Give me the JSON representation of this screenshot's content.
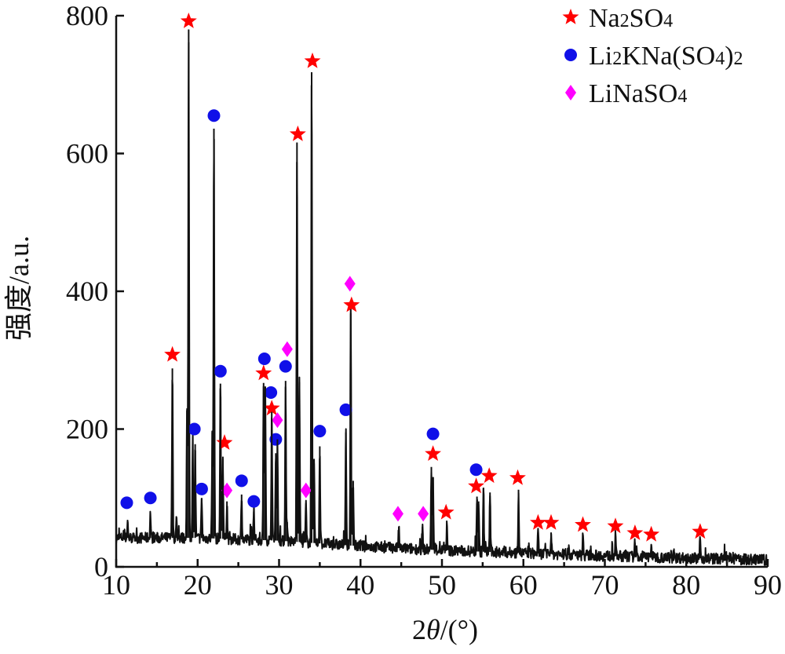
{
  "chart_data": {
    "type": "line",
    "xlabel_prefix": "2",
    "xlabel_var": "θ",
    "xlabel_unit": "/(°)",
    "ylabel": "强度/a.u.",
    "xlim": [
      10,
      90
    ],
    "ylim": [
      0,
      800
    ],
    "xticks": [
      10,
      20,
      30,
      40,
      50,
      60,
      70,
      80,
      90
    ],
    "yticks": [
      0,
      200,
      400,
      600,
      800
    ],
    "grid": false,
    "legend_position": "top-right",
    "legend": [
      {
        "key": "na2so4",
        "base": [
          "Na",
          "2",
          "SO",
          "4",
          ""
        ],
        "marker": "star",
        "color": "#ff0000"
      },
      {
        "key": "likna",
        "base": [
          "Li",
          "2",
          "KNa(SO",
          "4",
          ")2"
        ],
        "marker": "circle",
        "color": "#1010e8"
      },
      {
        "key": "linaso4",
        "base": [
          "LiNaSO",
          "4",
          "",
          "",
          ""
        ],
        "marker": "diamond",
        "color": "#ff00ff"
      }
    ],
    "legend_labels": {
      "na2so4": "Na2SO4",
      "likna": "Li2KNa(SO4)2",
      "linaso4": "LiNaSO4"
    },
    "series": [
      {
        "style": "xrd-pattern",
        "peaks": [
          {
            "x": 11.4,
            "y": 68
          },
          {
            "x": 14.2,
            "y": 78
          },
          {
            "x": 16.9,
            "y": 288
          },
          {
            "x": 17.4,
            "y": 70
          },
          {
            "x": 18.7,
            "y": 230
          },
          {
            "x": 18.9,
            "y": 780
          },
          {
            "x": 19.4,
            "y": 188
          },
          {
            "x": 19.7,
            "y": 178
          },
          {
            "x": 20.5,
            "y": 100
          },
          {
            "x": 21.8,
            "y": 195
          },
          {
            "x": 22.0,
            "y": 636
          },
          {
            "x": 22.8,
            "y": 266
          },
          {
            "x": 23.1,
            "y": 160
          },
          {
            "x": 23.6,
            "y": 95
          },
          {
            "x": 25.4,
            "y": 105
          },
          {
            "x": 26.9,
            "y": 80
          },
          {
            "x": 28.1,
            "y": 267
          },
          {
            "x": 28.3,
            "y": 262
          },
          {
            "x": 29.1,
            "y": 225
          },
          {
            "x": 29.6,
            "y": 165
          },
          {
            "x": 29.8,
            "y": 185
          },
          {
            "x": 30.8,
            "y": 270
          },
          {
            "x": 31.0,
            "y": 65
          },
          {
            "x": 32.2,
            "y": 616
          },
          {
            "x": 32.5,
            "y": 268
          },
          {
            "x": 33.3,
            "y": 92
          },
          {
            "x": 34.0,
            "y": 718
          },
          {
            "x": 34.3,
            "y": 150
          },
          {
            "x": 35.0,
            "y": 175
          },
          {
            "x": 38.2,
            "y": 195
          },
          {
            "x": 38.8,
            "y": 368
          },
          {
            "x": 39.1,
            "y": 125
          },
          {
            "x": 44.7,
            "y": 58
          },
          {
            "x": 47.6,
            "y": 58
          },
          {
            "x": 48.7,
            "y": 145
          },
          {
            "x": 48.9,
            "y": 130
          },
          {
            "x": 50.6,
            "y": 60
          },
          {
            "x": 54.3,
            "y": 102
          },
          {
            "x": 54.5,
            "y": 95
          },
          {
            "x": 55.1,
            "y": 115
          },
          {
            "x": 55.9,
            "y": 108
          },
          {
            "x": 59.4,
            "y": 112
          },
          {
            "x": 61.8,
            "y": 50
          },
          {
            "x": 63.4,
            "y": 50
          },
          {
            "x": 67.3,
            "y": 48
          },
          {
            "x": 71.3,
            "y": 45
          },
          {
            "x": 73.7,
            "y": 35
          },
          {
            "x": 75.7,
            "y": 32
          },
          {
            "x": 81.7,
            "y": 38
          }
        ]
      }
    ],
    "markers": [
      {
        "type": "star",
        "x": 16.9,
        "y": 308
      },
      {
        "type": "star",
        "x": 18.9,
        "y": 792
      },
      {
        "type": "star",
        "x": 23.3,
        "y": 180
      },
      {
        "type": "star",
        "x": 28.1,
        "y": 281
      },
      {
        "type": "star",
        "x": 29.1,
        "y": 230
      },
      {
        "type": "star",
        "x": 32.3,
        "y": 628
      },
      {
        "type": "star",
        "x": 34.1,
        "y": 734
      },
      {
        "type": "star",
        "x": 38.9,
        "y": 380
      },
      {
        "type": "star",
        "x": 48.9,
        "y": 164
      },
      {
        "type": "star",
        "x": 50.5,
        "y": 79
      },
      {
        "type": "star",
        "x": 54.2,
        "y": 117
      },
      {
        "type": "star",
        "x": 55.8,
        "y": 132
      },
      {
        "type": "star",
        "x": 59.3,
        "y": 129
      },
      {
        "type": "star",
        "x": 61.8,
        "y": 64
      },
      {
        "type": "star",
        "x": 63.4,
        "y": 64
      },
      {
        "type": "star",
        "x": 67.3,
        "y": 61
      },
      {
        "type": "star",
        "x": 71.3,
        "y": 59
      },
      {
        "type": "star",
        "x": 73.7,
        "y": 49
      },
      {
        "type": "star",
        "x": 75.7,
        "y": 47
      },
      {
        "type": "star",
        "x": 81.7,
        "y": 51
      },
      {
        "type": "circle",
        "x": 11.3,
        "y": 93
      },
      {
        "type": "circle",
        "x": 14.2,
        "y": 100
      },
      {
        "type": "circle",
        "x": 19.6,
        "y": 200
      },
      {
        "type": "circle",
        "x": 20.5,
        "y": 113
      },
      {
        "type": "circle",
        "x": 22.0,
        "y": 655
      },
      {
        "type": "circle",
        "x": 22.8,
        "y": 284
      },
      {
        "type": "circle",
        "x": 25.4,
        "y": 125
      },
      {
        "type": "circle",
        "x": 26.9,
        "y": 95
      },
      {
        "type": "circle",
        "x": 28.2,
        "y": 302
      },
      {
        "type": "circle",
        "x": 29.0,
        "y": 253
      },
      {
        "type": "circle",
        "x": 29.6,
        "y": 185
      },
      {
        "type": "circle",
        "x": 30.8,
        "y": 291
      },
      {
        "type": "circle",
        "x": 35.0,
        "y": 197
      },
      {
        "type": "circle",
        "x": 38.2,
        "y": 228
      },
      {
        "type": "circle",
        "x": 48.9,
        "y": 193
      },
      {
        "type": "circle",
        "x": 54.2,
        "y": 141
      },
      {
        "type": "diamond",
        "x": 23.6,
        "y": 111
      },
      {
        "type": "diamond",
        "x": 29.8,
        "y": 213
      },
      {
        "type": "diamond",
        "x": 31.0,
        "y": 316
      },
      {
        "type": "diamond",
        "x": 33.3,
        "y": 111
      },
      {
        "type": "diamond",
        "x": 38.7,
        "y": 411
      },
      {
        "type": "diamond",
        "x": 44.6,
        "y": 77
      },
      {
        "type": "diamond",
        "x": 47.7,
        "y": 77
      }
    ],
    "baseline": [
      {
        "x": 10,
        "y": 42
      },
      {
        "x": 20,
        "y": 42
      },
      {
        "x": 30,
        "y": 38
      },
      {
        "x": 40,
        "y": 30
      },
      {
        "x": 50,
        "y": 24
      },
      {
        "x": 60,
        "y": 20
      },
      {
        "x": 70,
        "y": 16
      },
      {
        "x": 80,
        "y": 13
      },
      {
        "x": 90,
        "y": 10
      }
    ]
  }
}
